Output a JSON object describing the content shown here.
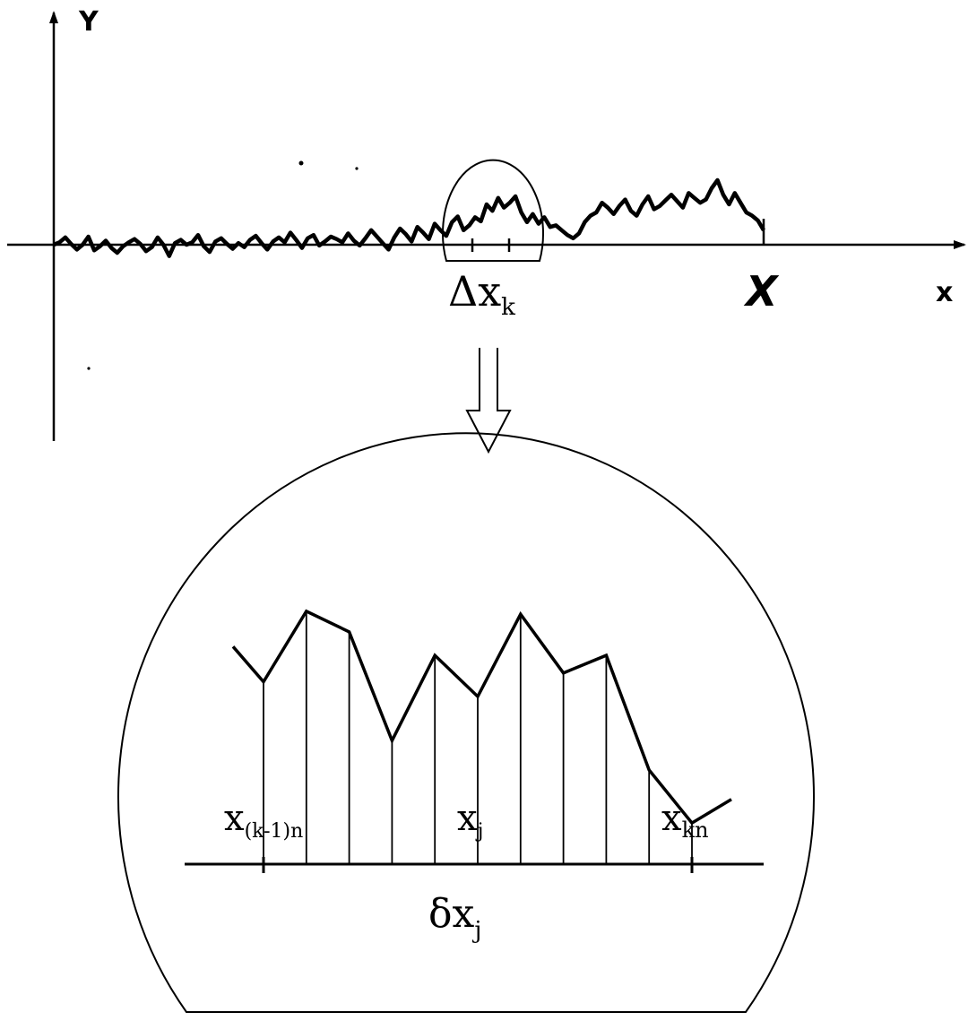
{
  "top_plot": {
    "y_axis_label": "Y",
    "x_axis_label": "x",
    "end_marker_label": "X",
    "interval_label": {
      "symbol": "Δx",
      "subscript": "k"
    },
    "profile_y": [
      0,
      3,
      9,
      1,
      -6,
      0,
      10,
      -7,
      -2,
      5,
      -4,
      -10,
      -2,
      3,
      7,
      1,
      -8,
      -3,
      9,
      0,
      -14,
      2,
      6,
      0,
      3,
      12,
      -2,
      -9,
      4,
      8,
      1,
      -5,
      2,
      -3,
      6,
      11,
      2,
      -6,
      4,
      9,
      3,
      15,
      6,
      -4,
      8,
      12,
      -1,
      4,
      10,
      7,
      3,
      14,
      5,
      -1,
      8,
      18,
      10,
      2,
      -6,
      9,
      20,
      13,
      4,
      22,
      15,
      7,
      26,
      18,
      11,
      28,
      35,
      18,
      24,
      34,
      29,
      50,
      42,
      58,
      46,
      52,
      60,
      40,
      28,
      38,
      26,
      34,
      22,
      24,
      18,
      12,
      8,
      14,
      28,
      36,
      40,
      52,
      46,
      38,
      48,
      56,
      42,
      36,
      50,
      60,
      44,
      48,
      55,
      62,
      54,
      46,
      64,
      58,
      52,
      56,
      70,
      80,
      62,
      50,
      64,
      52,
      40,
      36,
      30,
      18
    ]
  },
  "zoom": {
    "labels": {
      "left_symbol": "x",
      "left_subscript": "(k-1)n",
      "mid_symbol": "x",
      "mid_subscript": "j",
      "right_symbol": "x",
      "right_subscript": "kn",
      "delta_symbol": "δx",
      "delta_subscript": "j"
    },
    "sample_heights": [
      0.62,
      0.86,
      0.79,
      0.42,
      0.71,
      0.57,
      0.85,
      0.65,
      0.71,
      0.32,
      0.14
    ],
    "left_stub_height": 0.74,
    "right_stub_height": 0.22
  }
}
